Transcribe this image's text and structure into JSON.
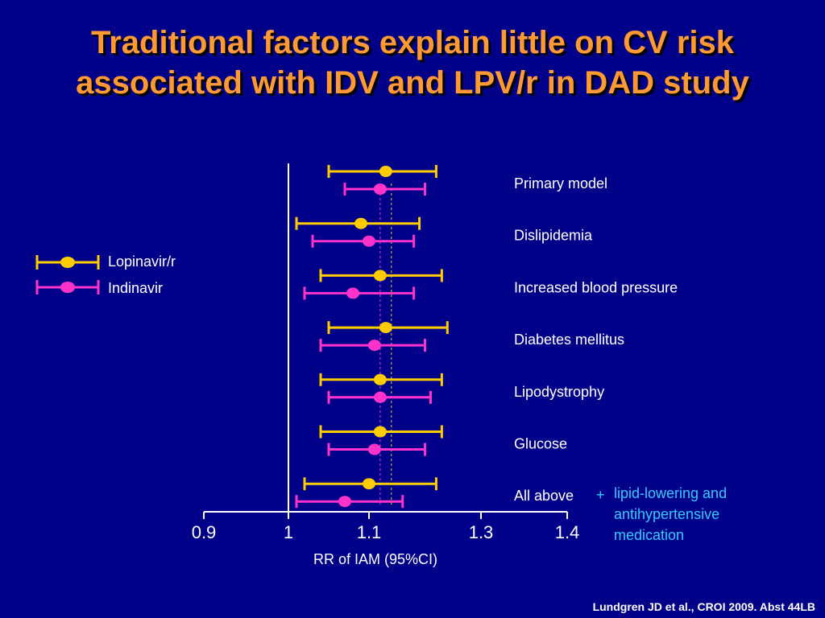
{
  "title": {
    "line1": "Traditional factors explain little on CV risk",
    "line2": "associated with IDV and LPV/r in DAD study"
  },
  "citation": "Lundgren JD et al., CROI 2009. Abst 44LB",
  "note": {
    "plus": "+",
    "lines": [
      "lipid-lowering and",
      "antihypertensive",
      "medication"
    ]
  },
  "colors": {
    "background": "#000088",
    "title": "#FF9933",
    "lopinavir": "#FFCC00",
    "indinavir": "#FF33CC",
    "note": "#33CCFF",
    "text": "#FFFFFF"
  },
  "chart_data": {
    "type": "forest",
    "xlabel": "RR of IAM (95%CI)",
    "xlim": [
      0.9,
      1.4
    ],
    "x_ticks": [
      0.9,
      1,
      1.1,
      1.3,
      1.4
    ],
    "x_tick_labels": [
      "0.9",
      "1",
      "1.1",
      "1.3",
      "1.4"
    ],
    "reference_line": 1,
    "legend": {
      "placement": "left",
      "entries": [
        "Lopinavir/r",
        "Indinavir"
      ]
    },
    "categories": [
      "Primary model",
      "Dislipidemia",
      "Increased blood pressure",
      "Diabetes mellitus",
      "Lipodystrophy",
      "Glucose",
      "All above"
    ],
    "series": [
      {
        "name": "Lopinavir/r",
        "color": "#FFCC00",
        "estimate": [
          1.13,
          1.09,
          1.12,
          1.13,
          1.12,
          1.12,
          1.1
        ],
        "lower": [
          1.05,
          1.01,
          1.04,
          1.05,
          1.04,
          1.04,
          1.02
        ],
        "upper": [
          1.22,
          1.19,
          1.23,
          1.24,
          1.23,
          1.23,
          1.22
        ],
        "reference": 1.14
      },
      {
        "name": "Indinavir",
        "color": "#FF33CC",
        "estimate": [
          1.12,
          1.1,
          1.08,
          1.11,
          1.12,
          1.11,
          1.07
        ],
        "lower": [
          1.07,
          1.03,
          1.02,
          1.04,
          1.05,
          1.05,
          1.01
        ],
        "upper": [
          1.2,
          1.18,
          1.18,
          1.2,
          1.21,
          1.2,
          1.16
        ],
        "reference": 1.12
      }
    ]
  }
}
